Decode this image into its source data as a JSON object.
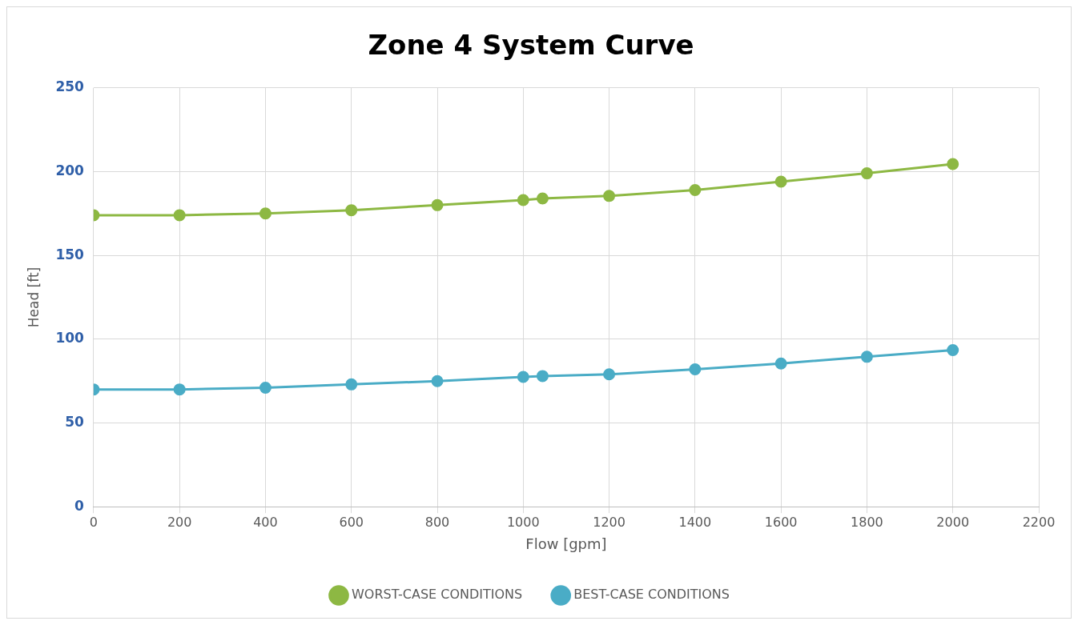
{
  "chart_data": {
    "type": "line",
    "title": "Zone 4 System Curve",
    "xlabel": "Flow [gpm]",
    "ylabel": "Head [ft]",
    "x": [
      0,
      200,
      400,
      600,
      800,
      1000,
      1045,
      1200,
      1400,
      1600,
      1800,
      2000
    ],
    "series": [
      {
        "name": "WORST-CASE CONDITIONS",
        "color": "#8db843",
        "values": [
          174,
          174,
          175,
          177,
          180,
          183,
          184,
          185.5,
          189,
          194,
          199,
          204.5
        ]
      },
      {
        "name": "BEST-CASE CONDITIONS",
        "color": "#4aacc6",
        "values": [
          70,
          70,
          71,
          73,
          75,
          77.5,
          78,
          79,
          82,
          85.5,
          89.5,
          93.5
        ]
      }
    ],
    "xlim": [
      0,
      2200
    ],
    "xticks": [
      0,
      200,
      400,
      600,
      800,
      1000,
      1200,
      1400,
      1600,
      1800,
      2000,
      2200
    ],
    "ylim": [
      0,
      250
    ],
    "yticks": [
      0,
      50,
      100,
      150,
      200,
      250
    ],
    "grid": true,
    "legend": "bottom",
    "marker": "circle",
    "line_style": "solid"
  }
}
